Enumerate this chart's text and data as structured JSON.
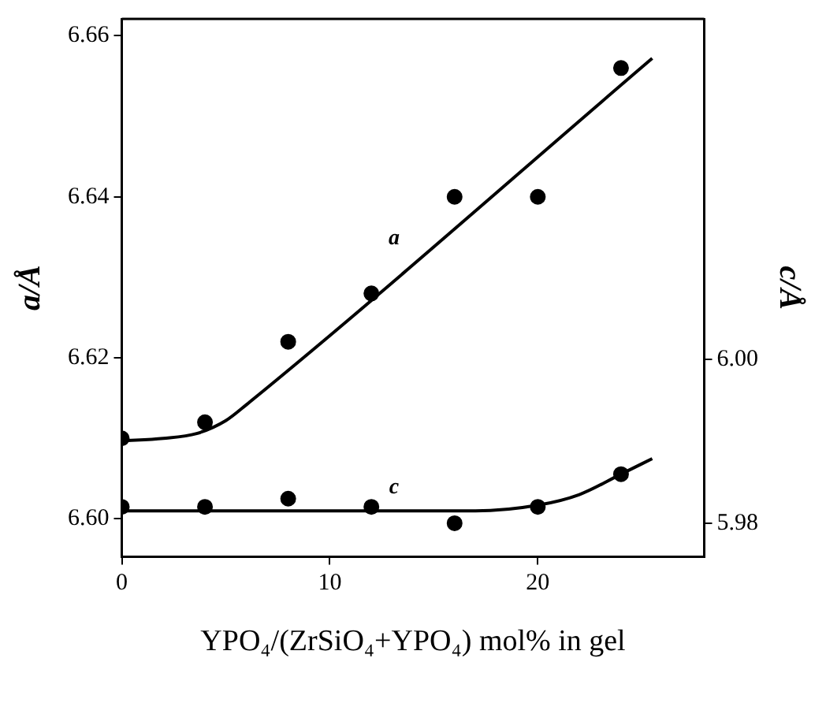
{
  "chart_data": {
    "type": "scatter",
    "xlabel": "YPO₄/(ZrSiO₄+YPO₄) mol% in gel",
    "ylabel": "a/Å",
    "y2label": "c/Å",
    "xlim": [
      0,
      28
    ],
    "xticks": [
      0,
      10,
      20
    ],
    "ylim": [
      6.5953,
      6.6621
    ],
    "yticks": [
      {
        "value": 6.6,
        "label": "6.60"
      },
      6.62,
      6.64,
      6.66
    ],
    "y2lim": [
      5.9759,
      6.0417
    ],
    "y2ticks": [
      5.98,
      {
        "value": 6.0,
        "label": "6.00"
      }
    ],
    "grid": false,
    "legend": false,
    "marker": "circle",
    "series": [
      {
        "color": "#000000",
        "x": [
          0,
          4,
          8,
          12,
          16,
          20,
          24
        ],
        "values": [
          6.61,
          6.612,
          6.622,
          6.628,
          6.64,
          6.64,
          6.656
        ]
      },
      {
        "type": "line",
        "color": "#000000",
        "marker": "none",
        "x": [
          0,
          2,
          3.6,
          5,
          6,
          25.5
        ],
        "values": [
          6.6097,
          6.61,
          6.6106,
          6.6122,
          6.6142,
          6.6572
        ]
      },
      {
        "color": "#000000",
        "axis": "y2",
        "x": [
          0,
          4,
          8,
          12,
          16,
          20,
          24
        ],
        "values": [
          5.982,
          5.982,
          5.983,
          5.982,
          5.98,
          5.982,
          5.986
        ]
      },
      {
        "type": "line",
        "color": "#000000",
        "marker": "none",
        "axis": "y2",
        "x": [
          0,
          17,
          20,
          22,
          24,
          25.5
        ],
        "values": [
          5.9815,
          5.9815,
          5.9822,
          5.9835,
          5.986,
          5.9879
        ]
      }
    ],
    "annotations": [
      "a",
      "c"
    ]
  }
}
